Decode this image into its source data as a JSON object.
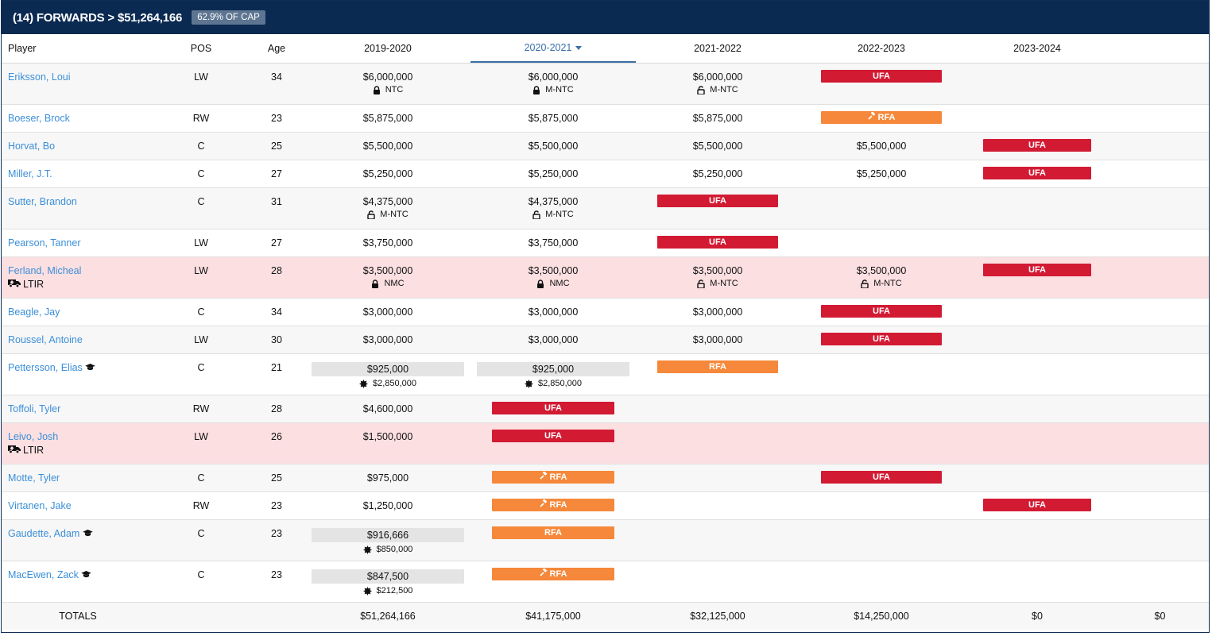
{
  "header": {
    "title": "(14) FORWARDS > $51,264,166",
    "badge": "62.9% OF CAP"
  },
  "columns": [
    "Player",
    "POS",
    "Age",
    "2019-2020",
    "2020-2021",
    "2021-2022",
    "2022-2023",
    "2023-2024"
  ],
  "sorted_column": "2020-2021",
  "status_colors": {
    "UFA": "#d21a33",
    "RFA": "#f5883a",
    "ltir_row": "#fcdfe1"
  },
  "rows": [
    {
      "player": "Eriksson, Loui",
      "pos": "LW",
      "age": "34",
      "y1": {
        "amt": "$6,000,000",
        "sub": "NTC",
        "icon": "lock"
      },
      "y2": {
        "amt": "$6,000,000",
        "sub": "M-NTC",
        "icon": "lock"
      },
      "y3": {
        "amt": "$6,000,000",
        "sub": "M-NTC",
        "icon": "unlock"
      },
      "y4": {
        "pill": "UFA"
      },
      "y5": {}
    },
    {
      "player": "Boeser, Brock",
      "pos": "RW",
      "age": "23",
      "y1": {
        "amt": "$5,875,000"
      },
      "y2": {
        "amt": "$5,875,000"
      },
      "y3": {
        "amt": "$5,875,000"
      },
      "y4": {
        "pill": "RFA",
        "icon": "gavel"
      },
      "y5": {}
    },
    {
      "player": "Horvat, Bo",
      "pos": "C",
      "age": "25",
      "y1": {
        "amt": "$5,500,000"
      },
      "y2": {
        "amt": "$5,500,000"
      },
      "y3": {
        "amt": "$5,500,000"
      },
      "y4": {
        "amt": "$5,500,000"
      },
      "y5": {
        "pill": "UFA"
      }
    },
    {
      "player": "Miller, J.T.",
      "pos": "C",
      "age": "27",
      "y1": {
        "amt": "$5,250,000"
      },
      "y2": {
        "amt": "$5,250,000"
      },
      "y3": {
        "amt": "$5,250,000"
      },
      "y4": {
        "amt": "$5,250,000"
      },
      "y5": {
        "pill": "UFA"
      }
    },
    {
      "player": "Sutter, Brandon",
      "pos": "C",
      "age": "31",
      "y1": {
        "amt": "$4,375,000",
        "sub": "M-NTC",
        "icon": "unlock"
      },
      "y2": {
        "amt": "$4,375,000",
        "sub": "M-NTC",
        "icon": "unlock"
      },
      "y3": {
        "pill": "UFA"
      },
      "y4": {},
      "y5": {}
    },
    {
      "player": "Pearson, Tanner",
      "pos": "LW",
      "age": "27",
      "y1": {
        "amt": "$3,750,000"
      },
      "y2": {
        "amt": "$3,750,000"
      },
      "y3": {
        "pill": "UFA"
      },
      "y4": {},
      "y5": {}
    },
    {
      "player": "Ferland, Micheal",
      "ltir": "LTIR",
      "pos": "LW",
      "age": "28",
      "y1": {
        "amt": "$3,500,000",
        "sub": "NMC",
        "icon": "lock"
      },
      "y2": {
        "amt": "$3,500,000",
        "sub": "NMC",
        "icon": "lock"
      },
      "y3": {
        "amt": "$3,500,000",
        "sub": "M-NTC",
        "icon": "unlock"
      },
      "y4": {
        "amt": "$3,500,000",
        "sub": "M-NTC",
        "icon": "unlock"
      },
      "y5": {
        "pill": "UFA"
      }
    },
    {
      "player": "Beagle, Jay",
      "pos": "C",
      "age": "34",
      "y1": {
        "amt": "$3,000,000"
      },
      "y2": {
        "amt": "$3,000,000"
      },
      "y3": {
        "amt": "$3,000,000"
      },
      "y4": {
        "pill": "UFA"
      },
      "y5": {}
    },
    {
      "player": "Roussel, Antoine",
      "pos": "LW",
      "age": "30",
      "y1": {
        "amt": "$3,000,000"
      },
      "y2": {
        "amt": "$3,000,000"
      },
      "y3": {
        "amt": "$3,000,000"
      },
      "y4": {
        "pill": "UFA"
      },
      "y5": {}
    },
    {
      "player": "Pettersson, Elias",
      "rookie": true,
      "pos": "C",
      "age": "21",
      "y1": {
        "amt": "$925,000",
        "grey": true,
        "sub": "$2,850,000",
        "icon": "bonus"
      },
      "y2": {
        "amt": "$925,000",
        "grey": true,
        "sub": "$2,850,000",
        "icon": "bonus"
      },
      "y3": {
        "pill": "RFA"
      },
      "y4": {},
      "y5": {}
    },
    {
      "player": "Toffoli, Tyler",
      "pos": "RW",
      "age": "28",
      "y1": {
        "amt": "$4,600,000"
      },
      "y2": {
        "pill": "UFA"
      },
      "y3": {},
      "y4": {},
      "y5": {}
    },
    {
      "player": "Leivo, Josh",
      "ltir": "LTIR",
      "pos": "LW",
      "age": "26",
      "y1": {
        "amt": "$1,500,000"
      },
      "y2": {
        "pill": "UFA"
      },
      "y3": {},
      "y4": {},
      "y5": {}
    },
    {
      "player": "Motte, Tyler",
      "pos": "C",
      "age": "25",
      "y1": {
        "amt": "$975,000"
      },
      "y2": {
        "pill": "RFA",
        "icon": "gavel"
      },
      "y3": {},
      "y4": {
        "pill": "UFA"
      },
      "y5": {}
    },
    {
      "player": "Virtanen, Jake",
      "pos": "RW",
      "age": "23",
      "y1": {
        "amt": "$1,250,000"
      },
      "y2": {
        "pill": "RFA",
        "icon": "gavel"
      },
      "y3": {},
      "y4": {},
      "y5": {
        "pill": "UFA"
      }
    },
    {
      "player": "Gaudette, Adam",
      "rookie": true,
      "pos": "C",
      "age": "23",
      "y1": {
        "amt": "$916,666",
        "grey": true,
        "sub": "$850,000",
        "icon": "bonus"
      },
      "y2": {
        "pill": "RFA"
      },
      "y3": {},
      "y4": {},
      "y5": {}
    },
    {
      "player": "MacEwen, Zack",
      "rookie": true,
      "pos": "C",
      "age": "23",
      "y1": {
        "amt": "$847,500",
        "grey": true,
        "sub": "$212,500",
        "icon": "bonus"
      },
      "y2": {
        "pill": "RFA",
        "icon": "gavel"
      },
      "y3": {},
      "y4": {},
      "y5": {}
    }
  ],
  "totals": {
    "label": "TOTALS",
    "y1": "$51,264,166",
    "y2": "$41,175,000",
    "y3": "$32,125,000",
    "y4": "$14,250,000",
    "y5": "$0",
    "y6": "$0"
  }
}
